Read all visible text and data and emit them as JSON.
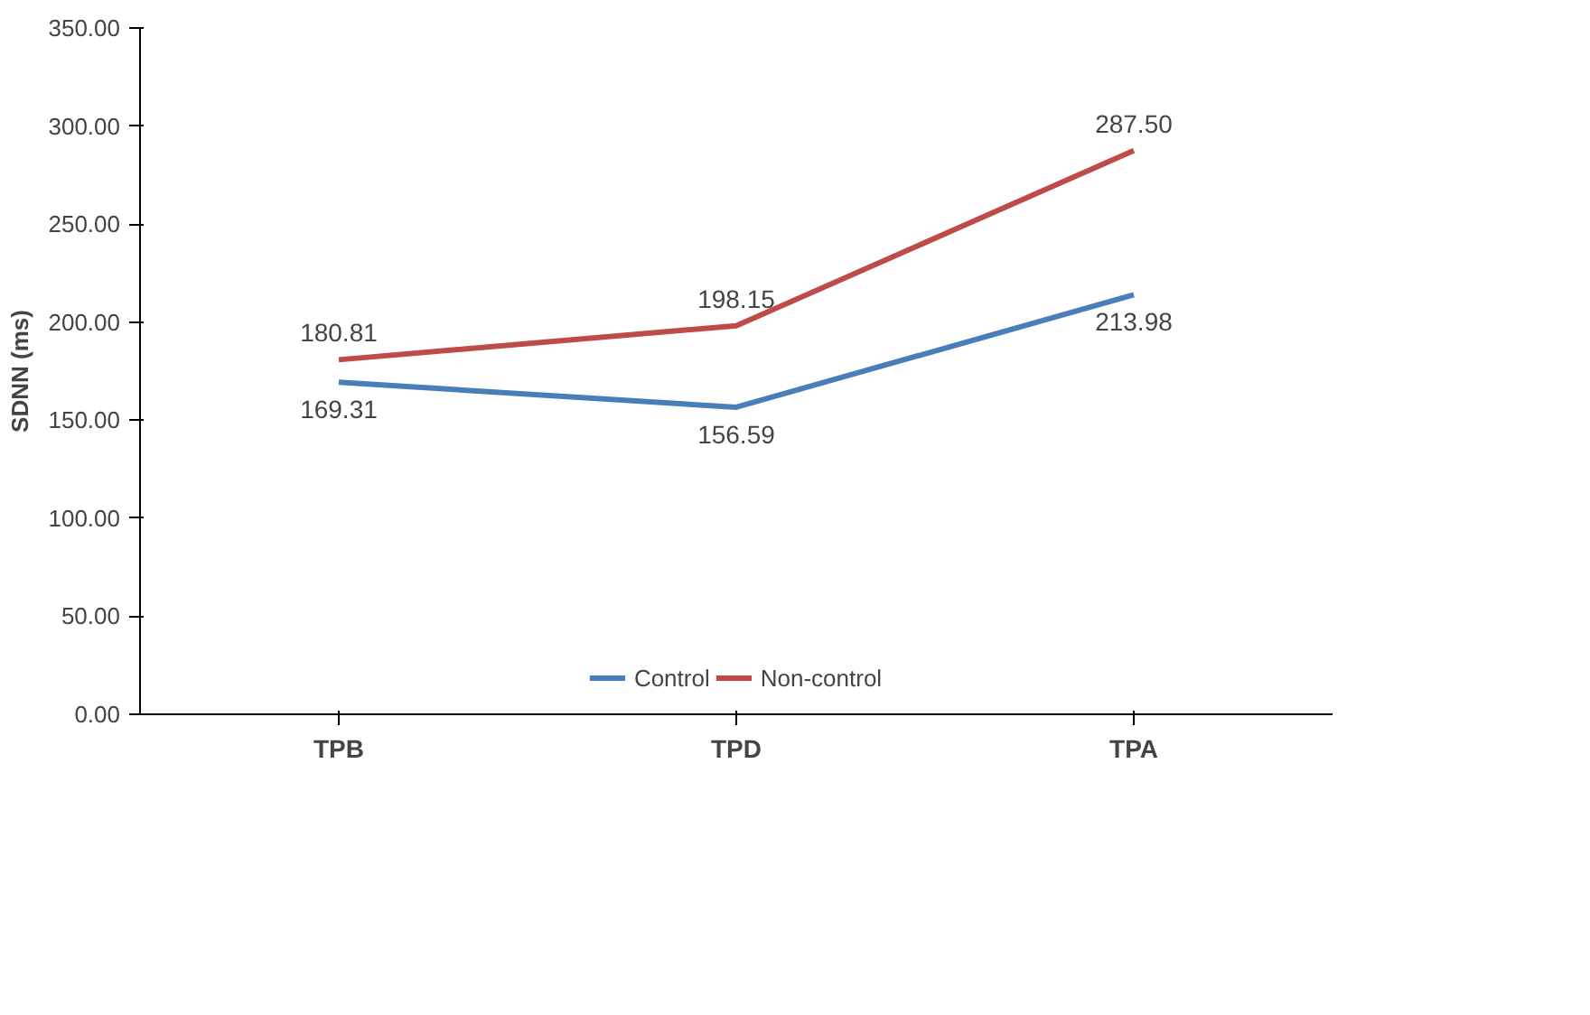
{
  "chart_data": {
    "type": "line",
    "ylabel": "SDNN (ms)",
    "categories": [
      "TPB",
      "TPD",
      "TPA"
    ],
    "series": [
      {
        "name": "Control",
        "color": "#4a7ebb",
        "values": [
          169.31,
          156.59,
          213.98
        ],
        "value_labels": [
          "169.31",
          "156.59",
          "213.98"
        ]
      },
      {
        "name": "Non-control",
        "color": "#be4b48",
        "values": [
          180.81,
          198.15,
          287.5
        ],
        "value_labels": [
          "180.81",
          "198.15",
          "287.50"
        ]
      }
    ],
    "ylim": [
      0,
      350
    ],
    "yticks": [
      {
        "value": 0,
        "label": "0.00"
      },
      {
        "value": 50,
        "label": "50.00"
      },
      {
        "value": 100,
        "label": "100.00"
      },
      {
        "value": 150,
        "label": "150.00"
      },
      {
        "value": 200,
        "label": "200.00"
      },
      {
        "value": 250,
        "label": "250.00"
      },
      {
        "value": 300,
        "label": "300.00"
      },
      {
        "value": 350,
        "label": "350.00"
      }
    ],
    "grid": false,
    "legend": "bottom",
    "marker": "none",
    "line_style": "solid"
  }
}
